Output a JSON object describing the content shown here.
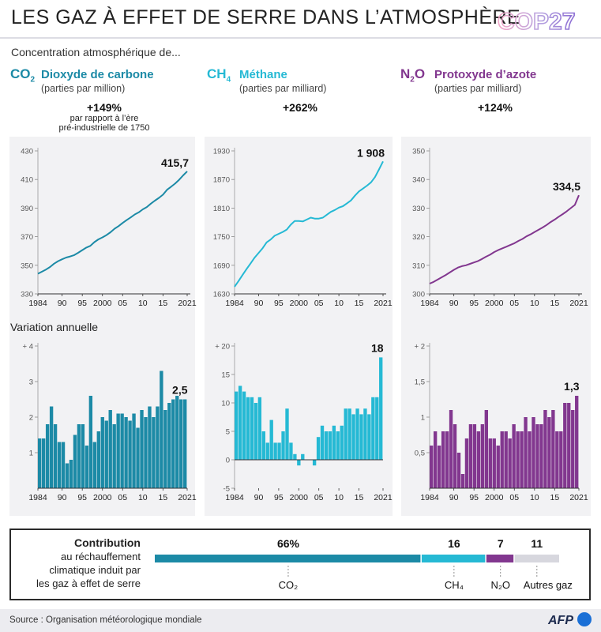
{
  "header": {
    "title": "LES GAZ À EFFET DE SERRE DANS L’ATMOSPHÈRE",
    "logo_text": "COP27"
  },
  "intro": "Concentration atmosphérique de...",
  "gases": [
    {
      "symbol": "CO",
      "sub": "2",
      "name": "Dioxyde de carbone",
      "unit": "(parties par million)",
      "pct": "+149%",
      "note1": "par rapport à l’ère",
      "note2": "pré-industrielle de 1750",
      "color": "#1c8aa6"
    },
    {
      "symbol": "CH",
      "sub": "4",
      "name": "Méthane",
      "unit": "(parties par milliard)",
      "pct": "+262%",
      "note1": "",
      "note2": "",
      "color": "#25b9d4"
    },
    {
      "symbol": "N",
      "sub": "2",
      "symbol2": "O",
      "name": "Protoxyde d’azote",
      "unit": "(parties par milliard)",
      "pct": "+124%",
      "note1": "",
      "note2": "",
      "color": "#82378f"
    }
  ],
  "variation_label": "Variation annuelle",
  "chart_data": [
    {
      "type": "line",
      "gas": "CO2",
      "x": [
        1984,
        1985,
        1986,
        1987,
        1988,
        1989,
        1990,
        1991,
        1992,
        1993,
        1994,
        1995,
        1996,
        1997,
        1998,
        1999,
        2000,
        2001,
        2002,
        2003,
        2004,
        2005,
        2006,
        2007,
        2008,
        2009,
        2010,
        2011,
        2012,
        2013,
        2014,
        2015,
        2016,
        2017,
        2018,
        2019,
        2020,
        2021
      ],
      "y": [
        344.1,
        345.5,
        347.0,
        348.8,
        351.1,
        352.9,
        354.2,
        355.4,
        356.2,
        357.1,
        358.8,
        360.6,
        362.4,
        363.6,
        366.2,
        368.1,
        369.5,
        371.1,
        373.1,
        375.6,
        377.4,
        379.6,
        381.6,
        383.5,
        385.5,
        387.0,
        389.1,
        390.7,
        393.1,
        395.2,
        397.1,
        399.4,
        402.8,
        404.9,
        407.1,
        409.8,
        412.9,
        415.7
      ],
      "ylim": [
        330,
        430
      ],
      "yticks": [
        330,
        350,
        370,
        390,
        410,
        430
      ],
      "xticks": [
        1984,
        1990,
        1995,
        2000,
        2005,
        2010,
        2015,
        2021
      ],
      "xtick_labels": [
        "1984",
        "90",
        "95",
        "2000",
        "05",
        "10",
        "15",
        "2021"
      ],
      "last_label": "415,7",
      "color": "#1c8aa6"
    },
    {
      "type": "line",
      "gas": "CH4",
      "x": [
        1984,
        1985,
        1986,
        1987,
        1988,
        1989,
        1990,
        1991,
        1992,
        1993,
        1994,
        1995,
        1996,
        1997,
        1998,
        1999,
        2000,
        2001,
        2002,
        2003,
        2004,
        2005,
        2006,
        2007,
        2008,
        2009,
        2010,
        2011,
        2012,
        2013,
        2014,
        2015,
        2016,
        2017,
        2018,
        2019,
        2020,
        2021
      ],
      "y": [
        1645,
        1657,
        1670,
        1682,
        1694,
        1706,
        1716,
        1726,
        1738,
        1744,
        1752,
        1756,
        1760,
        1765,
        1775,
        1783,
        1783,
        1782,
        1786,
        1790,
        1788,
        1788,
        1790,
        1796,
        1802,
        1806,
        1811,
        1814,
        1820,
        1826,
        1836,
        1845,
        1851,
        1857,
        1864,
        1875,
        1891,
        1908
      ],
      "ylim": [
        1630,
        1930
      ],
      "yticks": [
        1630,
        1690,
        1750,
        1810,
        1870,
        1930
      ],
      "xticks": [
        1984,
        1990,
        1995,
        2000,
        2005,
        2010,
        2015,
        2021
      ],
      "xtick_labels": [
        "1984",
        "90",
        "95",
        "2000",
        "05",
        "10",
        "15",
        "2021"
      ],
      "last_label": "1 908",
      "color": "#25b9d4"
    },
    {
      "type": "line",
      "gas": "N2O",
      "x": [
        1984,
        1985,
        1986,
        1987,
        1988,
        1989,
        1990,
        1991,
        1992,
        1993,
        1994,
        1995,
        1996,
        1997,
        1998,
        1999,
        2000,
        2001,
        2002,
        2003,
        2004,
        2005,
        2006,
        2007,
        2008,
        2009,
        2010,
        2011,
        2012,
        2013,
        2014,
        2015,
        2016,
        2017,
        2018,
        2019,
        2020,
        2021
      ],
      "y": [
        303.6,
        304.2,
        305.0,
        305.8,
        306.6,
        307.5,
        308.4,
        309.2,
        309.7,
        310.0,
        310.5,
        311.0,
        311.5,
        312.2,
        313.0,
        313.7,
        314.6,
        315.3,
        315.9,
        316.5,
        317.1,
        317.7,
        318.5,
        319.2,
        320.1,
        320.8,
        321.6,
        322.4,
        323.2,
        324.1,
        325.1,
        326.0,
        327.0,
        327.9,
        328.9,
        330.0,
        331.1,
        334.5
      ],
      "ylim": [
        300,
        350
      ],
      "yticks": [
        300,
        310,
        320,
        330,
        340,
        350
      ],
      "xticks": [
        1984,
        1990,
        1995,
        2000,
        2005,
        2010,
        2015,
        2021
      ],
      "xtick_labels": [
        "1984",
        "90",
        "95",
        "2000",
        "05",
        "10",
        "15",
        "2021"
      ],
      "last_label": "334,5",
      "color": "#82378f"
    },
    {
      "type": "bar",
      "gas": "CO2",
      "x": [
        1984,
        1985,
        1986,
        1987,
        1988,
        1989,
        1990,
        1991,
        1992,
        1993,
        1994,
        1995,
        1996,
        1997,
        1998,
        1999,
        2000,
        2001,
        2002,
        2003,
        2004,
        2005,
        2006,
        2007,
        2008,
        2009,
        2010,
        2011,
        2012,
        2013,
        2014,
        2015,
        2016,
        2017,
        2018,
        2019,
        2020,
        2021
      ],
      "values": [
        1.4,
        1.4,
        1.8,
        2.3,
        1.8,
        1.3,
        1.3,
        0.7,
        0.8,
        1.5,
        1.8,
        1.8,
        1.2,
        2.6,
        1.3,
        1.6,
        2.0,
        1.9,
        2.2,
        1.8,
        2.1,
        2.1,
        2.0,
        1.9,
        2.1,
        1.7,
        2.2,
        2.0,
        2.3,
        2.0,
        2.3,
        3.3,
        2.2,
        2.4,
        2.5,
        2.6,
        2.5,
        2.5
      ],
      "ylim": [
        0,
        4
      ],
      "yticks": [
        1,
        2,
        3,
        4
      ],
      "ytick_labels": [
        "1",
        "2",
        "3",
        "+ 4"
      ],
      "xticks": [
        1984,
        1990,
        1995,
        2000,
        2005,
        2010,
        2015,
        2021
      ],
      "xtick_labels": [
        "1984",
        "90",
        "95",
        "2000",
        "05",
        "10",
        "15",
        "2021"
      ],
      "last_label": "2,5",
      "color": "#1c8aa6"
    },
    {
      "type": "bar",
      "gas": "CH4",
      "x": [
        1984,
        1985,
        1986,
        1987,
        1988,
        1989,
        1990,
        1991,
        1992,
        1993,
        1994,
        1995,
        1996,
        1997,
        1998,
        1999,
        2000,
        2001,
        2002,
        2003,
        2004,
        2005,
        2006,
        2007,
        2008,
        2009,
        2010,
        2011,
        2012,
        2013,
        2014,
        2015,
        2016,
        2017,
        2018,
        2019,
        2020,
        2021
      ],
      "values": [
        12,
        13,
        12,
        11,
        11,
        10,
        11,
        5,
        3,
        7,
        3,
        3,
        5,
        9,
        3,
        1,
        -1,
        1,
        0,
        0,
        -1,
        4,
        6,
        5,
        5,
        6,
        5,
        6,
        9,
        9,
        8,
        9,
        8,
        9,
        8,
        11,
        11,
        18
      ],
      "ylim": [
        -5,
        20
      ],
      "yticks": [
        -5,
        0,
        5,
        10,
        15,
        20
      ],
      "ytick_labels": [
        "-5",
        "0",
        "5",
        "10",
        "15",
        "+ 20"
      ],
      "xticks": [
        1984,
        1990,
        1995,
        2000,
        2005,
        2010,
        2015,
        2021
      ],
      "xtick_labels": [
        "1984",
        "90",
        "95",
        "2000",
        "05",
        "10",
        "15",
        "2021"
      ],
      "last_label": "18",
      "color": "#25b9d4"
    },
    {
      "type": "bar",
      "gas": "N2O",
      "x": [
        1984,
        1985,
        1986,
        1987,
        1988,
        1989,
        1990,
        1991,
        1992,
        1993,
        1994,
        1995,
        1996,
        1997,
        1998,
        1999,
        2000,
        2001,
        2002,
        2003,
        2004,
        2005,
        2006,
        2007,
        2008,
        2009,
        2010,
        2011,
        2012,
        2013,
        2014,
        2015,
        2016,
        2017,
        2018,
        2019,
        2020,
        2021
      ],
      "values": [
        0.6,
        0.8,
        0.6,
        0.8,
        0.8,
        1.1,
        0.9,
        0.5,
        0.2,
        0.7,
        0.9,
        0.9,
        0.8,
        0.9,
        1.1,
        0.7,
        0.7,
        0.6,
        0.8,
        0.8,
        0.7,
        0.9,
        0.8,
        0.8,
        1.0,
        0.8,
        1.0,
        0.9,
        0.9,
        1.1,
        1.0,
        1.1,
        0.8,
        0.8,
        1.2,
        1.2,
        1.1,
        1.3
      ],
      "ylim": [
        0,
        2
      ],
      "yticks": [
        0.5,
        1,
        1.5,
        2
      ],
      "ytick_labels": [
        "0,5",
        "1",
        "1,5",
        "+ 2"
      ],
      "xticks": [
        1984,
        1990,
        1995,
        2000,
        2005,
        2010,
        2015,
        2021
      ],
      "xtick_labels": [
        "1984",
        "90",
        "95",
        "2000",
        "05",
        "10",
        "15",
        "2021"
      ],
      "last_label": "1,3",
      "color": "#82378f"
    },
    {
      "type": "bar",
      "orientation": "horizontal-stacked",
      "segments": [
        {
          "name": "CO₂",
          "value": 66,
          "label": "66%",
          "color": "#1c8aa6"
        },
        {
          "name": "CH₄",
          "value": 16,
          "label": "16",
          "color": "#25b9d4"
        },
        {
          "name": "N₂O",
          "value": 7,
          "label": "7",
          "color": "#82378f"
        },
        {
          "name": "Autres gaz",
          "value": 11,
          "label": "11",
          "color": "#d7d7de"
        }
      ]
    }
  ],
  "contribution": {
    "title": "Contribution",
    "line1": "au réchauffement",
    "line2": "climatique induit par",
    "line3": "les gaz à effet de serre"
  },
  "footer": {
    "source": "Source : Organisation météorologique mondiale",
    "brand": "AFP"
  }
}
